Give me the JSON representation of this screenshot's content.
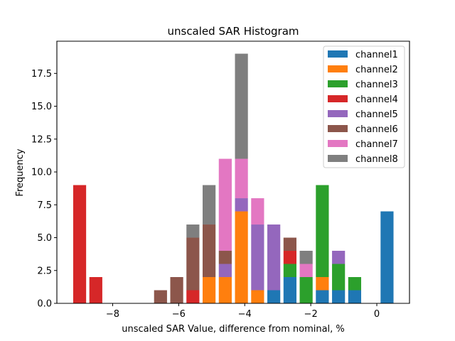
{
  "chart_data": {
    "type": "bar",
    "subtype": "stacked-histogram",
    "title": "unscaled SAR Histogram",
    "xlabel": "unscaled SAR Value, difference from nominal, %",
    "ylabel": "Frequency",
    "xlim": [
      -9.69,
      0.99
    ],
    "ylim": [
      0,
      19.95
    ],
    "xticks": [
      -8,
      -6,
      -4,
      -2,
      0
    ],
    "xtick_labels": [
      "−8",
      "−6",
      "−4",
      "−2",
      "0"
    ],
    "yticks": [
      0,
      2.5,
      5,
      7.5,
      10,
      12.5,
      15,
      17.5
    ],
    "ytick_labels": [
      "0.0",
      "2.5",
      "5.0",
      "7.5",
      "10.0",
      "12.5",
      "15.0",
      "17.5"
    ],
    "grid": false,
    "legend_position": "top-right",
    "bin_start": -9.245,
    "bin_width": 0.49,
    "bar_fill_fraction": 0.8,
    "bin_centers": [
      -9.0,
      -8.51,
      -8.02,
      -7.53,
      -7.04,
      -6.55,
      -6.06,
      -5.57,
      -5.08,
      -4.59,
      -4.1,
      -3.61,
      -3.12,
      -2.63,
      -2.14,
      -1.65,
      -1.16,
      -0.67,
      -0.18,
      0.31
    ],
    "series": [
      {
        "name": "channel1",
        "color": "#1f77b4",
        "values": [
          0,
          0,
          0,
          0,
          0,
          0,
          0,
          0,
          0,
          0,
          0,
          0,
          1,
          2,
          0,
          1,
          1,
          1,
          0,
          7
        ]
      },
      {
        "name": "channel2",
        "color": "#ff7f0e",
        "values": [
          0,
          0,
          0,
          0,
          0,
          0,
          0,
          0,
          2,
          2,
          7,
          1,
          0,
          0,
          0,
          1,
          0,
          0,
          0,
          0
        ]
      },
      {
        "name": "channel3",
        "color": "#2ca02c",
        "values": [
          0,
          0,
          0,
          0,
          0,
          0,
          0,
          0,
          0,
          0,
          0,
          0,
          0,
          1,
          2,
          7,
          2,
          1,
          0,
          0
        ]
      },
      {
        "name": "channel4",
        "color": "#d62728",
        "values": [
          9,
          2,
          0,
          0,
          0,
          0,
          0,
          1,
          0,
          0,
          0,
          0,
          0,
          1,
          0,
          0,
          0,
          0,
          0,
          0
        ]
      },
      {
        "name": "channel5",
        "color": "#9467bd",
        "values": [
          0,
          0,
          0,
          0,
          0,
          0,
          0,
          0,
          0,
          1,
          1,
          5,
          5,
          0,
          0,
          0,
          1,
          0,
          0,
          0
        ]
      },
      {
        "name": "channel6",
        "color": "#8c564b",
        "values": [
          0,
          0,
          0,
          0,
          0,
          1,
          2,
          4,
          4,
          1,
          0,
          0,
          0,
          1,
          0,
          0,
          0,
          0,
          0,
          0
        ]
      },
      {
        "name": "channel7",
        "color": "#e377c2",
        "values": [
          0,
          0,
          0,
          0,
          0,
          0,
          0,
          0,
          0,
          7,
          3,
          2,
          0,
          0,
          1,
          0,
          0,
          0,
          0,
          0
        ]
      },
      {
        "name": "channel8",
        "color": "#7f7f7f",
        "values": [
          0,
          0,
          0,
          0,
          0,
          0,
          0,
          1,
          3,
          0,
          8,
          0,
          0,
          0,
          1,
          0,
          0,
          0,
          0,
          0
        ]
      }
    ]
  }
}
